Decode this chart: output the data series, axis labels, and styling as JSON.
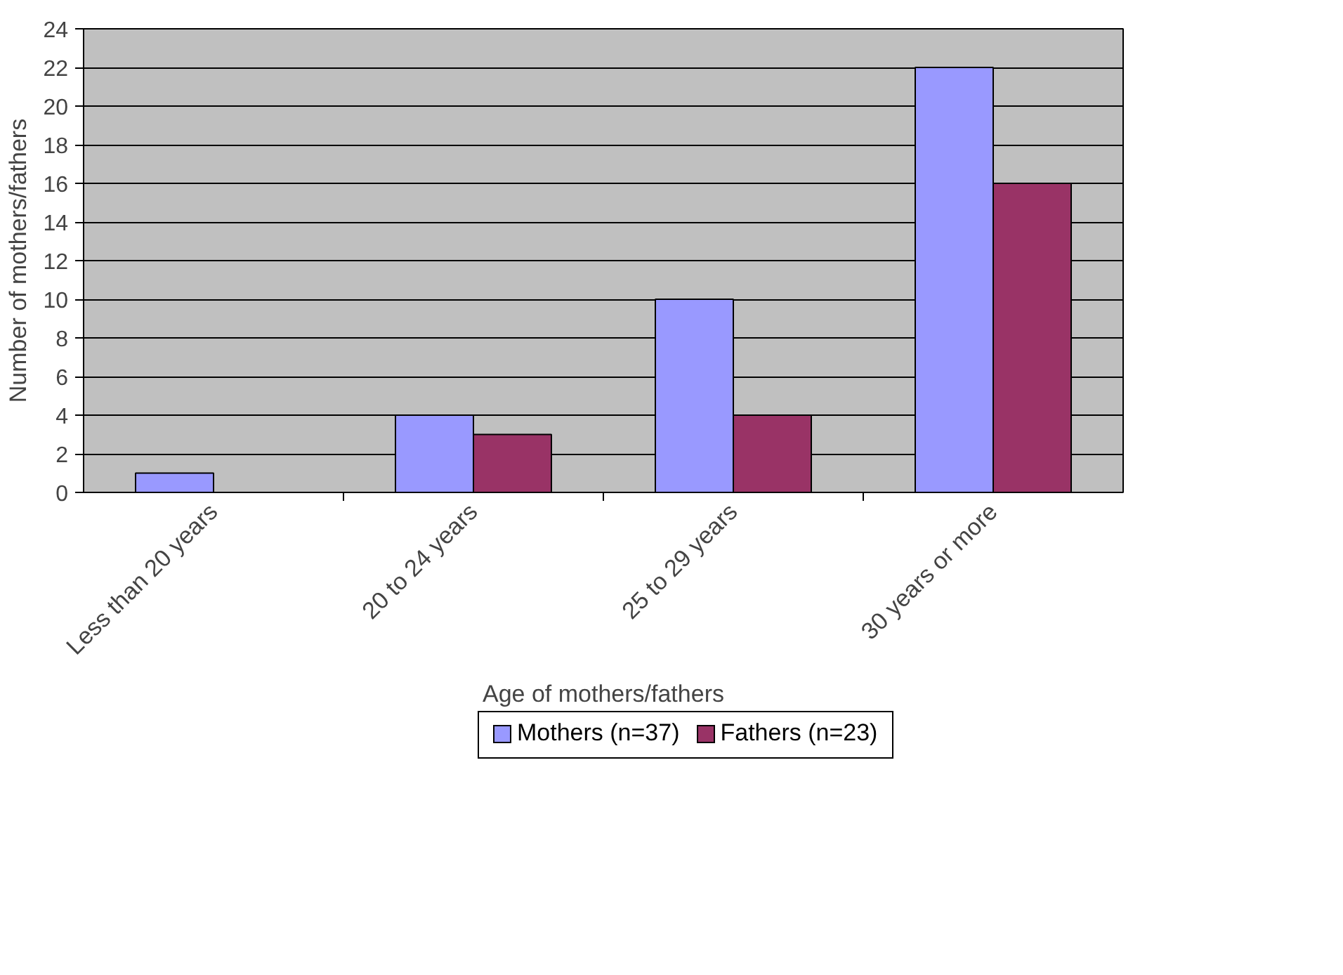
{
  "chart_data": {
    "type": "bar",
    "xlabel": "Age of mothers/fathers",
    "ylabel": "Number of mothers/fathers",
    "categories": [
      "Less than 20 years",
      "20 to 24 years",
      "25 to 29 years",
      "30 years or more"
    ],
    "series": [
      {
        "name": "Mothers (n=37)",
        "color": "#9999ff",
        "values": [
          1,
          4,
          10,
          22
        ]
      },
      {
        "name": "Fathers (n=23)",
        "color": "#993366",
        "values": [
          0,
          3,
          4,
          16
        ]
      }
    ],
    "ylim": [
      0,
      24
    ],
    "yticks": [
      0,
      2,
      4,
      6,
      8,
      10,
      12,
      14,
      16,
      18,
      20,
      22,
      24
    ],
    "grid": "y",
    "legend": "bottom"
  }
}
